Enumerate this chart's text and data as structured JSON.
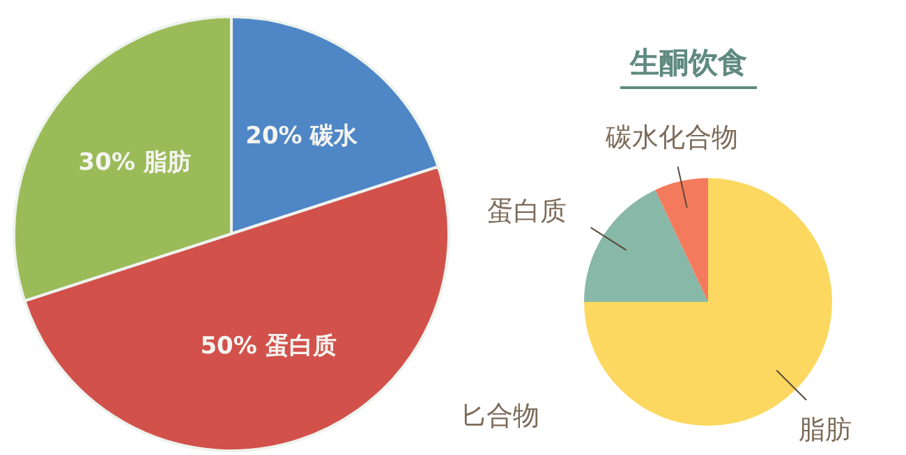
{
  "chart_data": [
    {
      "type": "pie",
      "categories": [
        "碳水",
        "蛋白质",
        "脂肪"
      ],
      "values": [
        20,
        50,
        30
      ],
      "value_labels": [
        "20%",
        "50%",
        "30%"
      ],
      "colors": [
        "#4f86c6",
        "#d2514b",
        "#9bbb59"
      ]
    },
    {
      "type": "pie",
      "title": "生酮饮食",
      "categories": [
        "脂肪",
        "蛋白质",
        "碳水化合物"
      ],
      "values": [
        75,
        18,
        7
      ],
      "colors": [
        "#fcd860",
        "#88b8a8",
        "#f47a5e"
      ],
      "annotations": [
        "匕合物"
      ]
    }
  ]
}
